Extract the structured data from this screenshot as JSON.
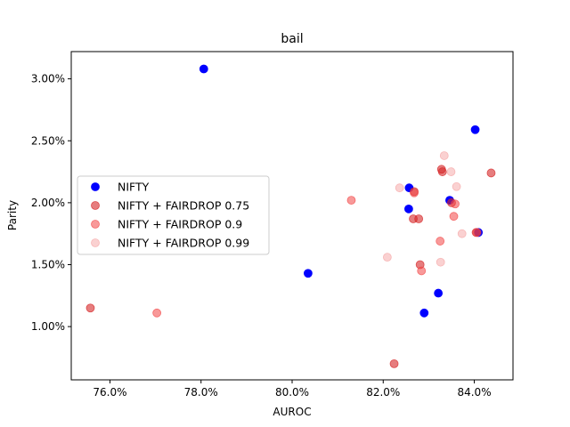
{
  "chart_data": {
    "type": "scatter",
    "title": "bail",
    "xlabel": "AUROC",
    "ylabel": "Parity",
    "xlim": [
      0.7515,
      0.8485
    ],
    "ylim": [
      0.0057,
      0.0322
    ],
    "xticks": [
      0.76,
      0.78,
      0.8,
      0.82,
      0.84
    ],
    "xtick_labels": [
      "76.0%",
      "78.0%",
      "80.0%",
      "82.0%",
      "84.0%"
    ],
    "yticks": [
      0.01,
      0.015,
      0.02,
      0.025,
      0.03
    ],
    "ytick_labels": [
      "1.00%",
      "1.50%",
      "2.00%",
      "2.50%",
      "3.00%"
    ],
    "grid": false,
    "legend_position": "center-left",
    "series": [
      {
        "name": "NIFTY",
        "color": "#0000ff",
        "alpha": 1.0,
        "points": [
          [
            0.7806,
            0.0308
          ],
          [
            0.8035,
            0.0143
          ],
          [
            0.8257,
            0.0212
          ],
          [
            0.8256,
            0.0195
          ],
          [
            0.829,
            0.0111
          ],
          [
            0.8321,
            0.0127
          ],
          [
            0.8346,
            0.0202
          ],
          [
            0.8402,
            0.0259
          ],
          [
            0.8409,
            0.0176
          ]
        ]
      },
      {
        "name": "NIFTY + FAIRDROP 0.75",
        "color": "#d62728",
        "alpha": 0.6,
        "points": [
          [
            0.7557,
            0.0115
          ],
          [
            0.8224,
            0.007
          ],
          [
            0.8268,
            0.0209
          ],
          [
            0.8266,
            0.0187
          ],
          [
            0.8278,
            0.0187
          ],
          [
            0.8281,
            0.015
          ],
          [
            0.8328,
            0.0227
          ],
          [
            0.833,
            0.0225
          ],
          [
            0.835,
            0.02
          ],
          [
            0.8437,
            0.0224
          ],
          [
            0.8404,
            0.0176
          ]
        ]
      },
      {
        "name": "NIFTY + FAIRDROP 0.9",
        "color": "#f24545",
        "alpha": 0.55,
        "points": [
          [
            0.7703,
            0.0111
          ],
          [
            0.813,
            0.0202
          ],
          [
            0.8268,
            0.0208
          ],
          [
            0.8284,
            0.0145
          ],
          [
            0.8325,
            0.0169
          ],
          [
            0.8358,
            0.0199
          ],
          [
            0.8355,
            0.0189
          ],
          [
            0.8406,
            0.0176
          ]
        ]
      },
      {
        "name": "NIFTY + FAIRDROP 0.99",
        "color": "#f59a9a",
        "alpha": 0.45,
        "points": [
          [
            0.8209,
            0.0156
          ],
          [
            0.8236,
            0.0212
          ],
          [
            0.8326,
            0.0152
          ],
          [
            0.8334,
            0.0238
          ],
          [
            0.8349,
            0.0225
          ],
          [
            0.8361,
            0.0213
          ],
          [
            0.8373,
            0.0175
          ]
        ]
      }
    ]
  }
}
